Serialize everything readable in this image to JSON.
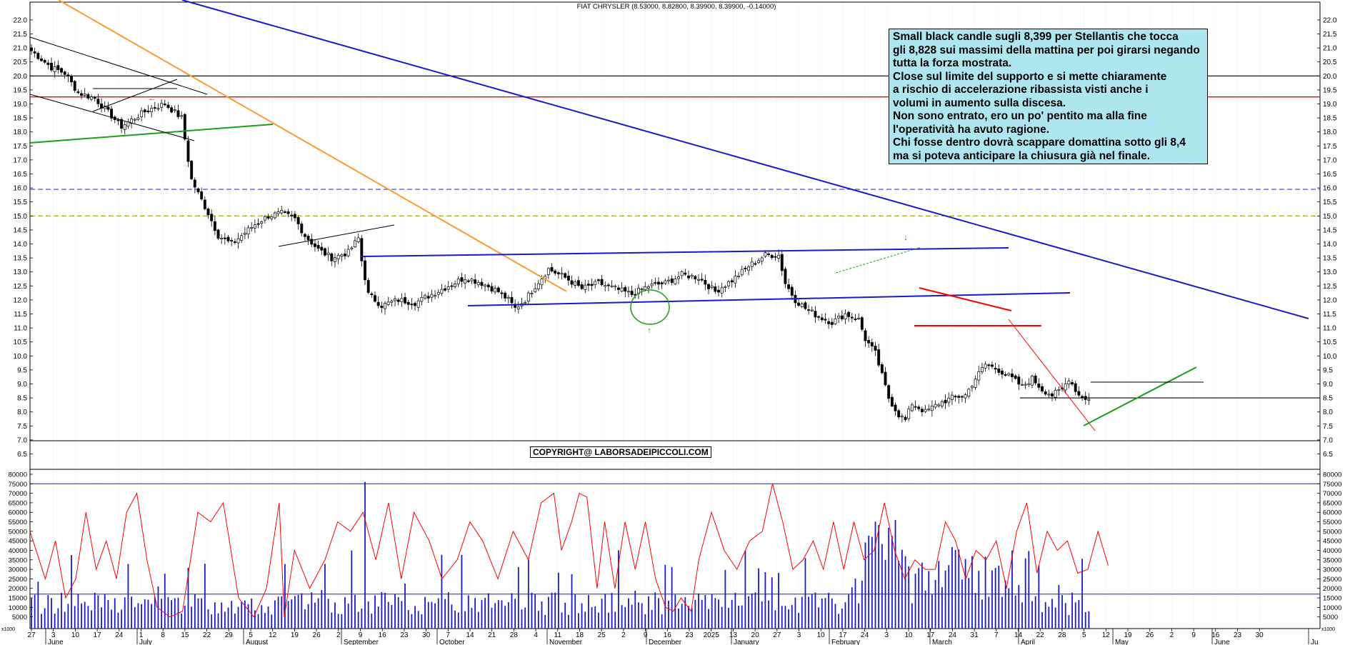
{
  "chart_data": [
    {
      "type": "candlestick",
      "title": "FIAT CHRYSLER (8.53000, 8.82800, 8.39900, 8.39900, -0.14000)",
      "ylim": [
        6.0,
        22.0
      ],
      "y_ticks": [
        "6.5",
        "7.0",
        "7.5",
        "8.0",
        "8.5",
        "9.0",
        "9.5",
        "10.0",
        "10.5",
        "11.0",
        "11.5",
        "12.0",
        "12.5",
        "13.0",
        "13.5",
        "14.0",
        "14.5",
        "15.0",
        "15.5",
        "16.0",
        "16.5",
        "17.0",
        "17.5",
        "18.0",
        "18.5",
        "19.0",
        "19.5",
        "20.0",
        "20.5",
        "21.0",
        "21.5",
        "22.0"
      ],
      "x_day_labels": [
        "27",
        "3",
        "10",
        "17",
        "24",
        "1",
        "8",
        "15",
        "22",
        "29",
        "5",
        "12",
        "19",
        "26",
        "2",
        "9",
        "16",
        "23",
        "30",
        "7",
        "14",
        "21",
        "28",
        "4",
        "11",
        "18",
        "25",
        "2",
        "9",
        "16",
        "23",
        "2025",
        "13",
        "20",
        "27",
        "3",
        "10",
        "17",
        "24",
        "3",
        "10",
        "17",
        "24",
        "31",
        "7",
        "14",
        "22",
        "28",
        "5",
        "12",
        "19",
        "26",
        "2",
        "9",
        "16",
        "23",
        "30"
      ],
      "x_month_labels": [
        "June",
        "July",
        "August",
        "September",
        "October",
        "November",
        "December",
        "January",
        "February",
        "March",
        "April",
        "May",
        "June",
        "Ju"
      ],
      "price_path": [
        [
          0,
          20.9
        ],
        [
          6,
          20.3
        ],
        [
          10,
          20.1
        ],
        [
          14,
          19.4
        ],
        [
          19,
          19.2
        ],
        [
          23,
          18.7
        ],
        [
          27,
          18.2
        ],
        [
          31,
          18.5
        ],
        [
          35,
          18.8
        ],
        [
          40,
          19.0
        ],
        [
          45,
          18.5
        ],
        [
          47,
          17.0
        ],
        [
          48,
          16.3
        ],
        [
          50,
          15.8
        ],
        [
          53,
          15.1
        ],
        [
          56,
          14.3
        ],
        [
          60,
          14.0
        ],
        [
          63,
          14.3
        ],
        [
          67,
          14.7
        ],
        [
          71,
          15.0
        ],
        [
          75,
          15.1
        ],
        [
          79,
          14.9
        ],
        [
          82,
          14.3
        ],
        [
          86,
          13.8
        ],
        [
          90,
          13.5
        ],
        [
          95,
          13.7
        ],
        [
          98,
          14.2
        ],
        [
          99,
          13.4
        ],
        [
          101,
          12.2
        ],
        [
          105,
          11.8
        ],
        [
          110,
          12.0
        ],
        [
          115,
          11.9
        ],
        [
          120,
          12.2
        ],
        [
          125,
          12.5
        ],
        [
          130,
          12.8
        ],
        [
          135,
          12.6
        ],
        [
          140,
          12.3
        ],
        [
          143,
          12.0
        ],
        [
          145,
          11.7
        ],
        [
          148,
          12.0
        ],
        [
          151,
          12.5
        ],
        [
          155,
          13.1
        ],
        [
          160,
          12.8
        ],
        [
          165,
          12.4
        ],
        [
          170,
          12.6
        ],
        [
          175,
          12.4
        ],
        [
          180,
          12.2
        ],
        [
          185,
          12.5
        ],
        [
          190,
          12.6
        ],
        [
          195,
          12.9
        ],
        [
          200,
          12.8
        ],
        [
          205,
          12.3
        ],
        [
          210,
          12.7
        ],
        [
          215,
          13.2
        ],
        [
          220,
          13.6
        ],
        [
          224,
          13.6
        ],
        [
          226,
          12.6
        ],
        [
          229,
          12.0
        ],
        [
          232,
          11.7
        ],
        [
          236,
          11.4
        ],
        [
          240,
          11.2
        ],
        [
          244,
          11.5
        ],
        [
          248,
          11.3
        ],
        [
          250,
          10.6
        ],
        [
          253,
          10.1
        ],
        [
          255,
          9.3
        ],
        [
          257,
          8.5
        ],
        [
          260,
          7.9
        ],
        [
          262,
          7.7
        ],
        [
          264,
          8.3
        ],
        [
          268,
          8.0
        ],
        [
          272,
          8.3
        ],
        [
          276,
          8.5
        ],
        [
          280,
          8.6
        ],
        [
          283,
          9.2
        ],
        [
          286,
          9.7
        ],
        [
          290,
          9.5
        ],
        [
          294,
          9.2
        ],
        [
          297,
          8.9
        ],
        [
          300,
          9.2
        ],
        [
          303,
          8.8
        ],
        [
          306,
          8.6
        ],
        [
          309,
          8.8
        ],
        [
          311,
          9.2
        ],
        [
          314,
          8.6
        ],
        [
          317,
          8.45
        ]
      ],
      "horizontal_lines": [
        {
          "price": 20.0,
          "color": "#000000",
          "style": "solid"
        },
        {
          "price": 19.25,
          "color": "#ff0000",
          "style": "solid"
        },
        {
          "price": 15.95,
          "color": "#3333ff",
          "style": "dashed"
        },
        {
          "price": 15.0,
          "color": "#999900",
          "style": "dashed"
        },
        {
          "price": 8.5,
          "color": "#000000",
          "style": "solid"
        }
      ],
      "annotation": [
        "Small black candle sugli 8,399 per  Stellantis che tocca",
        "gli 8,828 sui massimi della mattina per poi girarsi negando",
        "tutta la forza mostrata.",
        "Close sul limite del supporto e si mette chiaramente",
        "a rischio di accelerazione ribassista visti anche i",
        "volumi in aumento sulla discesa.",
        "Non sono entrato, ero un po' pentito ma alla fine",
        "l'operatività ha avuto ragione.",
        "Chi fosse dentro dovrà scappare domattina sotto gli 8,4",
        "ma si poteva anticipare la chiusura già nel finale."
      ],
      "copyright": "COPYRIGHT@ LABORSADEIPICCOLI.COM"
    },
    {
      "type": "bar",
      "ylim": [
        0,
        80000
      ],
      "y_ticks": [
        "5000",
        "10000",
        "15000",
        "20000",
        "25000",
        "30000",
        "35000",
        "40000",
        "45000",
        "50000",
        "55000",
        "60000",
        "65000",
        "70000",
        "75000",
        "80000"
      ],
      "y_unit_label": "x1000",
      "reference_lines": [
        75000,
        17000
      ],
      "average_path": [
        [
          0,
          50000
        ],
        [
          6,
          25000
        ],
        [
          10,
          45000
        ],
        [
          14,
          15000
        ],
        [
          18,
          25000
        ],
        [
          22,
          60000
        ],
        [
          26,
          30000
        ],
        [
          30,
          45000
        ],
        [
          34,
          25000
        ],
        [
          38,
          60000
        ],
        [
          42,
          70000
        ],
        [
          46,
          35000
        ],
        [
          50,
          10000
        ],
        [
          55,
          5000
        ],
        [
          60,
          8000
        ],
        [
          66,
          60000
        ],
        [
          71,
          55000
        ],
        [
          76,
          65000
        ],
        [
          82,
          15000
        ],
        [
          88,
          5000
        ],
        [
          93,
          20000
        ],
        [
          98,
          65000
        ],
        [
          100,
          5000
        ],
        [
          104,
          40000
        ],
        [
          110,
          20000
        ],
        [
          116,
          35000
        ],
        [
          121,
          55000
        ],
        [
          126,
          50000
        ],
        [
          131,
          60000
        ],
        [
          136,
          35000
        ],
        [
          141,
          65000
        ],
        [
          146,
          25000
        ],
        [
          151,
          60000
        ],
        [
          157,
          45000
        ],
        [
          162,
          25000
        ],
        [
          168,
          35000
        ],
        [
          173,
          55000
        ],
        [
          178,
          45000
        ],
        [
          184,
          25000
        ],
        [
          190,
          50000
        ],
        [
          196,
          35000
        ],
        [
          201,
          65000
        ],
        [
          206,
          70000
        ],
        [
          209,
          40000
        ],
        [
          213,
          55000
        ],
        [
          216,
          70000
        ],
        [
          219,
          68000
        ],
        [
          223,
          20000
        ],
        [
          226,
          55000
        ],
        [
          230,
          20000
        ],
        [
          234,
          55000
        ],
        [
          238,
          30000
        ],
        [
          242,
          55000
        ],
        [
          246,
          25000
        ],
        [
          250,
          10000
        ],
        [
          253,
          8000
        ],
        [
          256,
          15000
        ],
        [
          260,
          8000
        ],
        [
          263,
          35000
        ],
        [
          268,
          60000
        ],
        [
          273,
          40000
        ],
        [
          278,
          30000
        ],
        [
          283,
          45000
        ],
        [
          288,
          50000
        ],
        [
          292,
          75000
        ],
        [
          296,
          55000
        ],
        [
          300,
          30000
        ],
        [
          304,
          35000
        ],
        [
          308,
          45000
        ],
        [
          312,
          30000
        ],
        [
          316,
          55000
        ],
        [
          320,
          30000
        ],
        [
          324,
          55000
        ],
        [
          328,
          35000
        ],
        [
          332,
          40000
        ],
        [
          336,
          65000
        ],
        [
          340,
          40000
        ],
        [
          344,
          25000
        ],
        [
          348,
          35000
        ],
        [
          352,
          30000
        ],
        [
          356,
          30000
        ],
        [
          360,
          55000
        ],
        [
          364,
          45000
        ],
        [
          368,
          25000
        ],
        [
          372,
          40000
        ],
        [
          376,
          35000
        ],
        [
          380,
          45000
        ],
        [
          384,
          20000
        ],
        [
          388,
          50000
        ],
        [
          392,
          65000
        ],
        [
          396,
          28000
        ],
        [
          400,
          50000
        ],
        [
          404,
          40000
        ],
        [
          408,
          45000
        ],
        [
          412,
          28000
        ],
        [
          416,
          30000
        ],
        [
          420,
          50000
        ],
        [
          424,
          32000
        ]
      ]
    }
  ]
}
